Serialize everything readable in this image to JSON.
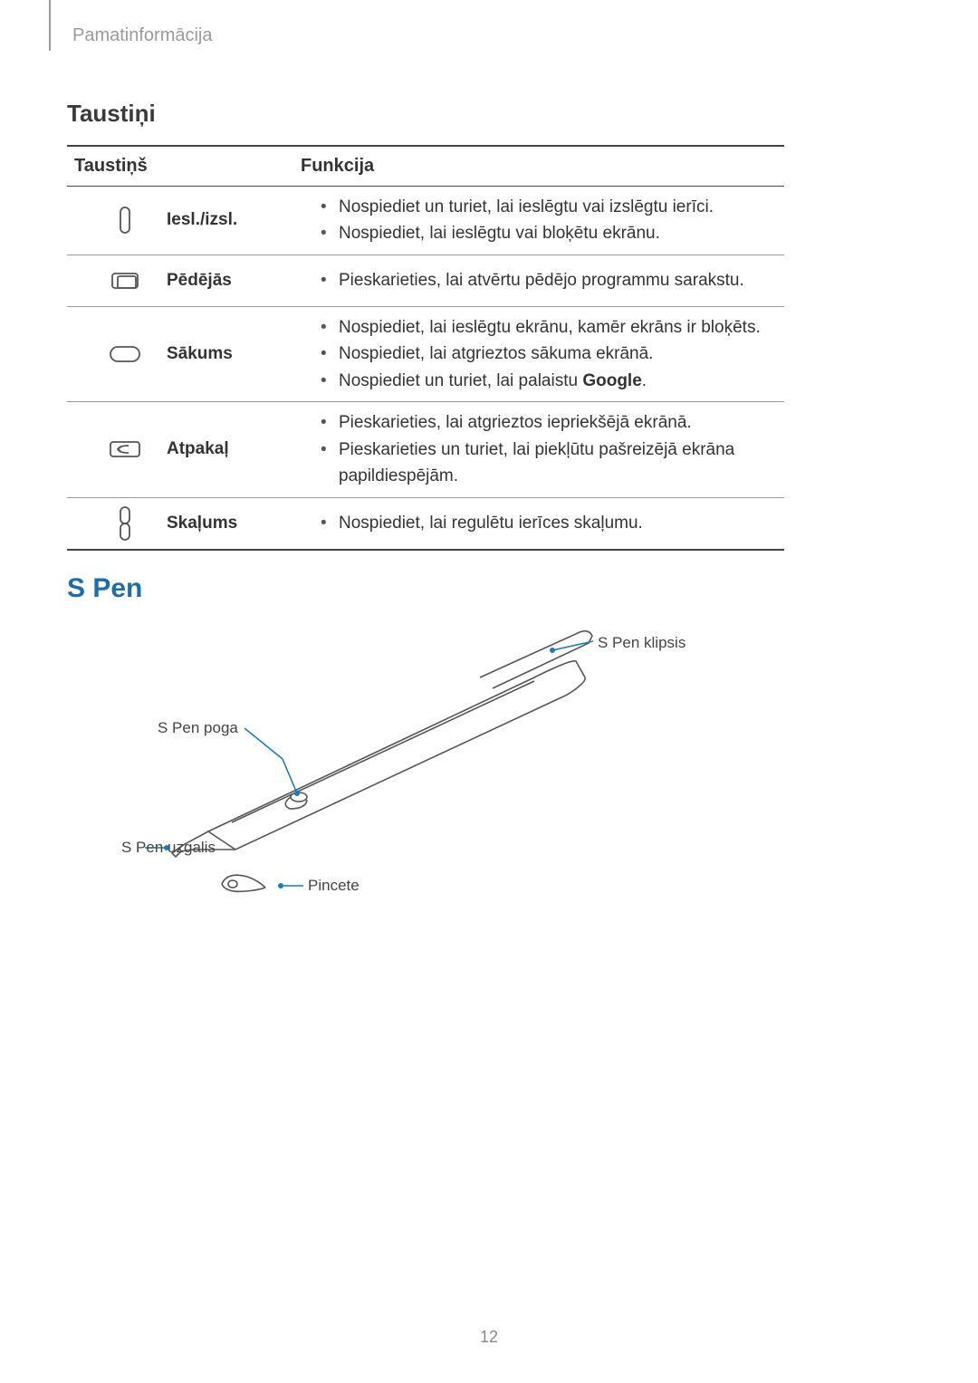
{
  "breadcrumb": "Pamatinformācija",
  "headings": {
    "taustini": "Taustiņi",
    "spen": "S Pen"
  },
  "table": {
    "header_key": "Taustiņš",
    "header_fn": "Funkcija",
    "rows": [
      {
        "label": "Iesl./izsl.",
        "icon": "power",
        "fns": [
          "Nospiediet un turiet, lai ieslēgtu vai izslēgtu ierīci.",
          "Nospiediet, lai ieslēgtu vai bloķētu ekrānu."
        ]
      },
      {
        "label": "Pēdējās",
        "icon": "recent",
        "fns": [
          "Pieskarieties, lai atvērtu pēdējo programmu sarakstu."
        ]
      },
      {
        "label": "Sākums",
        "icon": "home",
        "fns": [
          "Nospiediet, lai ieslēgtu ekrānu, kamēr ekrāns ir bloķēts.",
          "Nospiediet, lai atgrieztos sākuma ekrānā.",
          "Nospiediet un turiet, lai palaistu <b>Google</b>."
        ]
      },
      {
        "label": "Atpakaļ",
        "icon": "back",
        "fns": [
          "Pieskarieties, lai atgrieztos iepriekšējā ekrānā.",
          "Pieskarieties un turiet, lai piekļūtu pašreizējā ekrāna papildiespējām."
        ]
      },
      {
        "label": "Skaļums",
        "icon": "volume",
        "fns": [
          "Nospiediet, lai regulētu ierīces skaļumu."
        ]
      }
    ]
  },
  "diagram": {
    "labels": {
      "clip": "S Pen klipsis",
      "button": "S Pen poga",
      "tip": "S Pen uzgalis",
      "tweezers": "Pincete"
    },
    "line_color": "#1a7bb5",
    "stroke_color": "#555555"
  },
  "page_number": "12"
}
